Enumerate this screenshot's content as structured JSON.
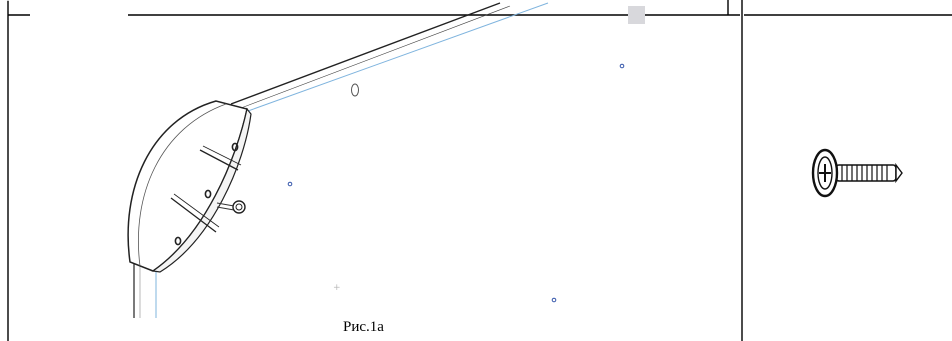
{
  "figure": {
    "caption": "Рис.1а"
  },
  "icons": {
    "assembly": "furniture-corner-assembly-drawing",
    "part": "screw-icon"
  }
}
